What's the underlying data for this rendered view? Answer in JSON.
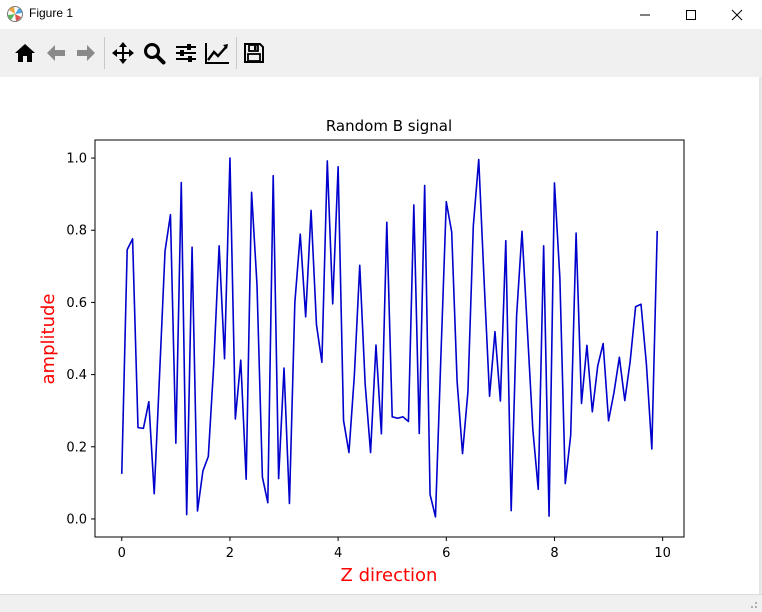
{
  "window": {
    "title": "Figure 1",
    "icon": "matplotlib-figure-icon"
  },
  "toolbar": {
    "tools": [
      "home-icon",
      "back-arrow-icon",
      "forward-arrow-icon",
      "pan-icon",
      "zoom-icon",
      "configure-subplots-icon",
      "edit-axis-icon",
      "save-icon"
    ]
  },
  "colors": {
    "line": "#0000cd",
    "axis_label": "#ff0000"
  },
  "chart_data": {
    "type": "line",
    "title": "Random B signal",
    "xlabel": "Z direction",
    "ylabel": "amplitude",
    "xlim": [
      -0.495,
      10.395
    ],
    "ylim": [
      -0.05,
      1.05
    ],
    "xticks": [
      "0",
      "2",
      "4",
      "6",
      "8",
      "10"
    ],
    "xtick_values": [
      0,
      2,
      4,
      6,
      8,
      10
    ],
    "yticks": [
      "0.0",
      "0.2",
      "0.4",
      "0.6",
      "0.8",
      "1.0"
    ],
    "ytick_values": [
      0.0,
      0.2,
      0.4,
      0.6,
      0.8,
      1.0
    ],
    "grid": false,
    "series": [
      {
        "color": "#0000cd",
        "x": [
          0.0,
          0.1,
          0.2,
          0.3,
          0.4,
          0.5,
          0.6,
          0.7,
          0.8,
          0.9,
          1.0,
          1.1,
          1.2,
          1.3,
          1.4,
          1.5,
          1.6,
          1.7,
          1.8,
          1.9,
          2.0,
          2.1,
          2.2,
          2.3,
          2.4,
          2.5,
          2.6,
          2.7,
          2.8,
          2.9,
          3.0,
          3.1,
          3.2,
          3.3,
          3.4,
          3.5,
          3.6,
          3.7,
          3.8,
          3.9,
          4.0,
          4.1,
          4.2,
          4.3,
          4.4,
          4.5,
          4.6,
          4.7,
          4.8,
          4.9,
          5.0,
          5.1,
          5.2,
          5.3,
          5.4,
          5.5,
          5.6,
          5.7,
          5.8,
          5.9,
          6.0,
          6.1,
          6.2,
          6.3,
          6.4,
          6.5,
          6.6,
          6.7,
          6.8,
          6.9,
          7.0,
          7.1,
          7.2,
          7.3,
          7.4,
          7.5,
          7.6,
          7.7,
          7.8,
          7.9,
          8.0,
          8.1,
          8.2,
          8.3,
          8.4,
          8.5,
          8.6,
          8.7,
          8.8,
          8.9,
          9.0,
          9.1,
          9.2,
          9.3,
          9.4,
          9.5,
          9.6,
          9.7,
          9.8,
          9.9
        ],
        "y": [
          0.125,
          0.746,
          0.776,
          0.253,
          0.251,
          0.325,
          0.07,
          0.403,
          0.742,
          0.843,
          0.21,
          0.932,
          0.012,
          0.753,
          0.022,
          0.133,
          0.173,
          0.426,
          0.757,
          0.444,
          1.0,
          0.277,
          0.44,
          0.11,
          0.905,
          0.649,
          0.116,
          0.045,
          0.951,
          0.112,
          0.418,
          0.043,
          0.6,
          0.789,
          0.56,
          0.855,
          0.538,
          0.434,
          0.992,
          0.596,
          0.976,
          0.273,
          0.184,
          0.397,
          0.703,
          0.374,
          0.184,
          0.482,
          0.236,
          0.822,
          0.283,
          0.279,
          0.283,
          0.27,
          0.87,
          0.237,
          0.924,
          0.068,
          0.006,
          0.449,
          0.879,
          0.795,
          0.381,
          0.181,
          0.353,
          0.813,
          0.996,
          0.657,
          0.34,
          0.519,
          0.327,
          0.771,
          0.023,
          0.563,
          0.797,
          0.522,
          0.248,
          0.082,
          0.757,
          0.008,
          0.931,
          0.668,
          0.098,
          0.232,
          0.792,
          0.32,
          0.481,
          0.297,
          0.424,
          0.486,
          0.272,
          0.35,
          0.448,
          0.328,
          0.437,
          0.588,
          0.595,
          0.429,
          0.194,
          0.798
        ]
      }
    ]
  }
}
